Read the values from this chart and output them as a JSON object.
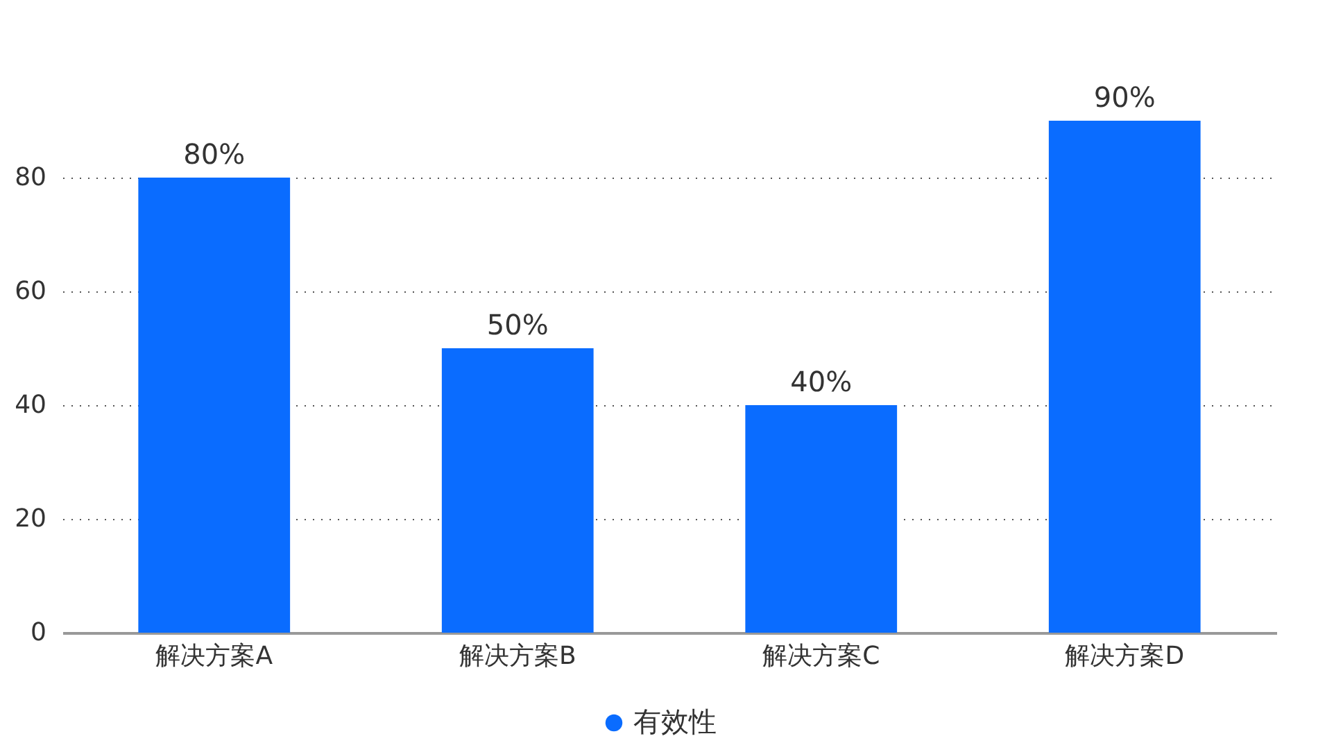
{
  "chart_data": {
    "type": "bar",
    "categories": [
      "解决方案A",
      "解决方案B",
      "解决方案C",
      "解决方案D"
    ],
    "series": [
      {
        "name": "有效性",
        "color": "#0a6cff",
        "values": [
          80,
          50,
          40,
          90
        ],
        "value_labels": [
          "80%",
          "50%",
          "40%",
          "90%"
        ]
      }
    ],
    "ylim": [
      0,
      90
    ],
    "yticks": [
      0,
      20,
      40,
      60,
      80
    ],
    "grid": "y",
    "legend": "bottom",
    "marker": "circle"
  }
}
